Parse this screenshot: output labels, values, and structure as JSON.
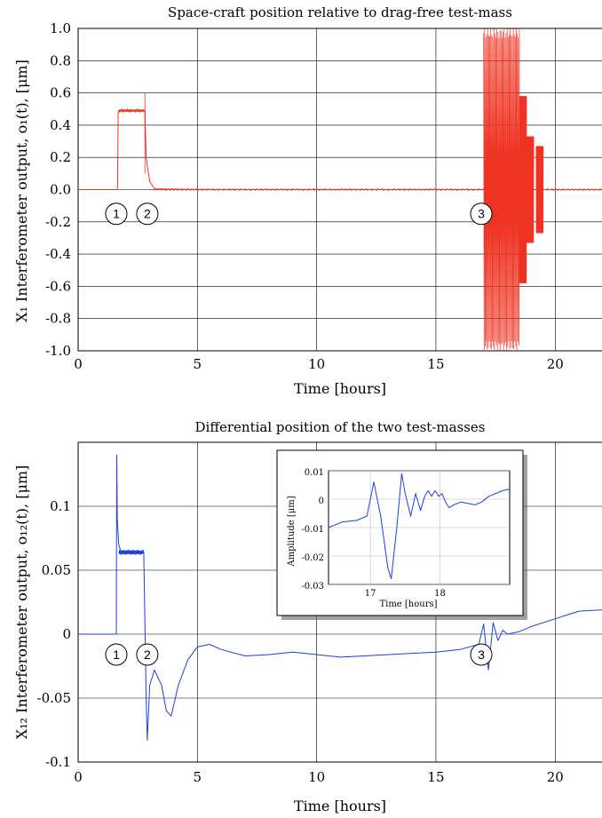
{
  "chart_data": [
    {
      "type": "line",
      "title": "Space-craft position relative to drag-free test-mass",
      "xlabel": "Time [hours]",
      "ylabel": "X₁ Interferometer output, o₁(t), [μm]",
      "xlim": [
        0,
        22
      ],
      "ylim": [
        -1.0,
        1.0
      ],
      "xticks": [
        "0",
        "5",
        "10",
        "15",
        "20"
      ],
      "yticks": [
        "-1.0",
        "-0.8",
        "-0.6",
        "-0.4",
        "-0.2",
        "0.0",
        "0.2",
        "0.4",
        "0.6",
        "0.8",
        "1.0"
      ],
      "grid": true,
      "color": "#ee3322",
      "series": [
        {
          "x": [
            0,
            1.65,
            1.68,
            1.7,
            2.0,
            2.5,
            2.8,
            2.85,
            3.0,
            3.2,
            5,
            10,
            15,
            17.0
          ],
          "y": [
            0,
            0,
            0.48,
            0.49,
            0.49,
            0.49,
            0.49,
            0.2,
            0.05,
            0.005,
            0,
            0,
            0,
            0
          ]
        }
      ],
      "bursts": [
        {
          "x_start": 17.0,
          "x_end": 18.5,
          "amplitude": 1.0
        },
        {
          "x_start": 18.5,
          "x_end": 18.8,
          "amplitude": 0.58
        },
        {
          "x_start": 18.8,
          "x_end": 19.1,
          "amplitude": 0.33
        },
        {
          "x_start": 19.2,
          "x_end": 19.5,
          "amplitude": 0.27
        }
      ],
      "markers": [
        {
          "label": "1",
          "x": 1.6,
          "y": -0.15
        },
        {
          "label": "2",
          "x": 2.9,
          "y": -0.15
        },
        {
          "label": "3",
          "x": 16.9,
          "y": -0.15
        }
      ]
    },
    {
      "type": "line",
      "title": "Differential position of the two test-masses",
      "xlabel": "Time [hours]",
      "ylabel": "X₁₂ Interferometer output, o₁₂(t), [μm]",
      "xlim": [
        0,
        22
      ],
      "ylim": [
        -0.1,
        0.15
      ],
      "xticks": [
        "0",
        "5",
        "10",
        "15",
        "20"
      ],
      "yticks": [
        "-0.1",
        "-0.05",
        "0",
        "0.05",
        "0.1"
      ],
      "grid": true,
      "color": "#1f3fdd",
      "series": [
        {
          "x": [
            0,
            1.6,
            1.62,
            1.64,
            1.7,
            1.8,
            2.0,
            2.4,
            2.75,
            2.8,
            2.85,
            2.9,
            3.0,
            3.2,
            3.5,
            3.7,
            3.9,
            4.2,
            4.6,
            5.0,
            5.5,
            6,
            7,
            8,
            9,
            10,
            11,
            12,
            13,
            14,
            15,
            16,
            16.8,
            17.0,
            17.2,
            17.4,
            17.6,
            17.8,
            18.0,
            18.5,
            19,
            20,
            21,
            22
          ],
          "y": [
            0,
            0,
            0.14,
            0.09,
            0.07,
            0.064,
            0.063,
            0.064,
            0.064,
            0.01,
            -0.05,
            -0.083,
            -0.04,
            -0.028,
            -0.04,
            -0.06,
            -0.064,
            -0.04,
            -0.02,
            -0.01,
            -0.008,
            -0.012,
            -0.017,
            -0.016,
            -0.014,
            -0.016,
            -0.018,
            -0.017,
            -0.016,
            -0.015,
            -0.014,
            -0.012,
            -0.008,
            0.008,
            -0.028,
            0.009,
            -0.005,
            0.003,
            0.0,
            0.002,
            0.006,
            0.012,
            0.018,
            0.019
          ]
        }
      ],
      "markers": [
        {
          "label": "1",
          "x": 1.6,
          "y": -0.016
        },
        {
          "label": "2",
          "x": 2.9,
          "y": -0.016
        },
        {
          "label": "3",
          "x": 16.9,
          "y": -0.016
        }
      ],
      "inset": {
        "xlabel": "Time [hours]",
        "ylabel": "Amplitude [μm]",
        "xlim": [
          16.4,
          19.0
        ],
        "ylim": [
          -0.03,
          0.01
        ],
        "xticks": [
          "17",
          "18"
        ],
        "yticks": [
          "0.01",
          "0",
          "-0.01",
          "-0.02",
          "-0.03"
        ],
        "series": [
          {
            "x": [
              16.4,
              16.6,
              16.8,
              16.95,
              17.05,
              17.15,
              17.25,
              17.3,
              17.38,
              17.45,
              17.5,
              17.58,
              17.65,
              17.72,
              17.78,
              17.83,
              17.88,
              17.93,
              17.98,
              18.03,
              18.08,
              18.13,
              18.2,
              18.3,
              18.4,
              18.5,
              18.6,
              18.7,
              18.8,
              18.9,
              19.0
            ],
            "y": [
              -0.01,
              -0.008,
              -0.0075,
              -0.006,
              0.006,
              -0.006,
              -0.024,
              -0.028,
              -0.01,
              0.009,
              0.002,
              -0.006,
              0.002,
              -0.004,
              0.001,
              0.003,
              0.001,
              0.003,
              0.001,
              0.002,
              -0.001,
              -0.003,
              -0.002,
              -0.001,
              -0.0015,
              -0.002,
              -0.001,
              0.001,
              0.002,
              0.003,
              0.0035
            ]
          }
        ]
      }
    }
  ]
}
